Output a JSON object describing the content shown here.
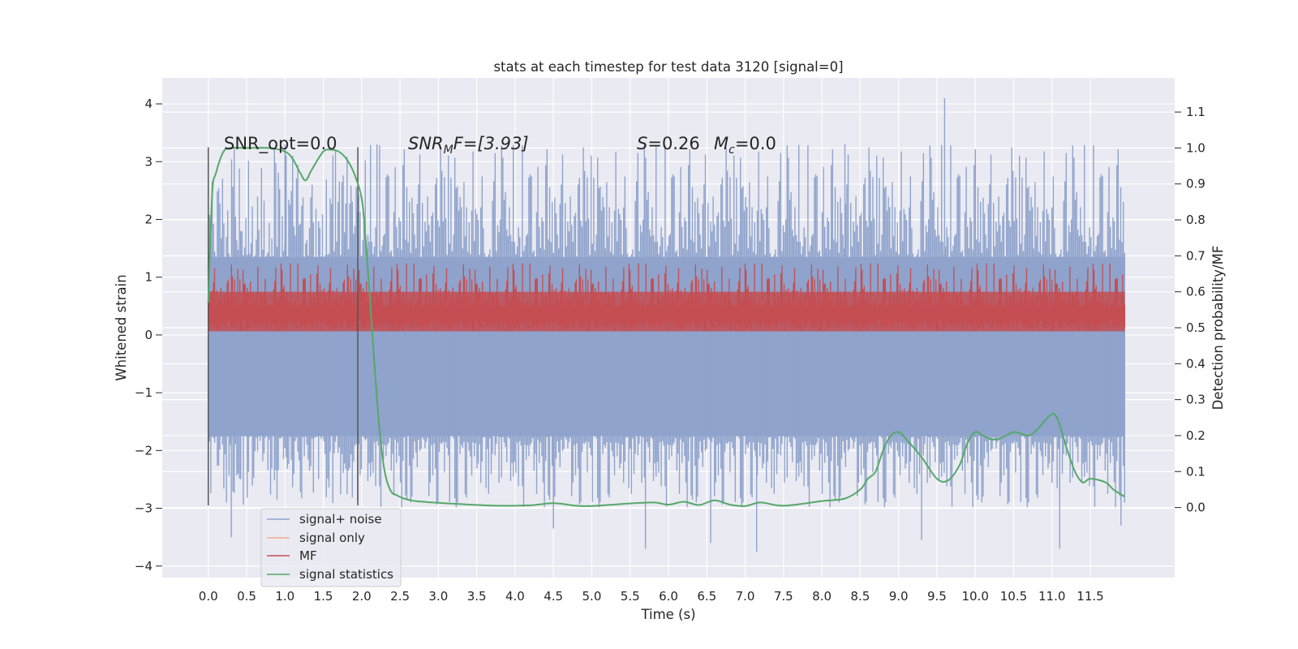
{
  "chart_data": {
    "type": "line",
    "title": "stats at each timestep for test data 3120 [signal=0]",
    "xlabel": "Time (s)",
    "ylabel": "Whitened strain",
    "y2label": "Detection probability/MF",
    "xlim": [
      -0.6,
      12.6
    ],
    "ylim": [
      -4.2,
      4.45
    ],
    "y2lim": [
      -0.195,
      1.195
    ],
    "xticks": [
      "0.0",
      "0.5",
      "1.0",
      "1.5",
      "2.0",
      "2.5",
      "3.0",
      "3.5",
      "4.0",
      "4.5",
      "5.0",
      "5.5",
      "6.0",
      "6.5",
      "7.0",
      "7.5",
      "8.0",
      "8.5",
      "9.0",
      "9.5",
      "10.0",
      "10.5",
      "11.0",
      "11.5"
    ],
    "yticks": [
      "4",
      "3",
      "2",
      "1",
      "0",
      "−1",
      "−2",
      "−3",
      "−4"
    ],
    "y2ticks": [
      "1.1",
      "1.0",
      "0.9",
      "0.8",
      "0.7",
      "0.6",
      "0.5",
      "0.4",
      "0.3",
      "0.2",
      "0.1",
      "0.0"
    ],
    "annotations": {
      "snr_opt": "SNR_opt=0.0",
      "snr_mf_sym": "SNR",
      "snr_mf_sub": "M",
      "snr_mf_rest": "F=[3.93]",
      "s_sym": "S",
      "s_rest": "=0.26",
      "mc_sym": "M",
      "mc_sub": "c",
      "mc_rest": "=0.0"
    },
    "vlines": [
      0.0,
      1.95
    ],
    "vline_range": [
      -2.95,
      3.25
    ],
    "series": [
      {
        "name": "signal+ noise",
        "color": "#8fa3cc",
        "band": [
          -1.75,
          1.35
        ],
        "spike_range": [
          -3.8,
          4.1
        ],
        "t_end": 11.95
      },
      {
        "name": "signal only",
        "color": "#f2a98a",
        "values": []
      },
      {
        "name": "MF",
        "color": "#c44e52",
        "axis": "y2",
        "band": [
          0.49,
          0.6
        ],
        "spike_range": [
          0.49,
          0.68
        ],
        "t_end": 11.95
      },
      {
        "name": "signal statistics",
        "color": "#55a868",
        "axis": "y2",
        "x": [
          0.0,
          0.05,
          0.1,
          0.2,
          0.3,
          0.5,
          0.8,
          1.0,
          1.1,
          1.2,
          1.27,
          1.35,
          1.5,
          1.6,
          1.7,
          1.8,
          1.9,
          2.0,
          2.05,
          2.1,
          2.15,
          2.2,
          2.25,
          2.3,
          2.35,
          2.4,
          2.45,
          2.55,
          2.7,
          3.0,
          3.4,
          3.8,
          4.2,
          4.5,
          4.8,
          5.0,
          5.4,
          5.8,
          6.0,
          6.2,
          6.4,
          6.6,
          6.8,
          7.0,
          7.2,
          7.5,
          8.0,
          8.3,
          8.5,
          8.6,
          8.7,
          8.8,
          8.9,
          9.0,
          9.1,
          9.3,
          9.5,
          9.65,
          9.8,
          9.9,
          10.0,
          10.1,
          10.2,
          10.3,
          10.4,
          10.5,
          10.6,
          10.7,
          10.8,
          10.9,
          11.0,
          11.05,
          11.1,
          11.2,
          11.3,
          11.4,
          11.5,
          11.7,
          11.8,
          11.95
        ],
        "values": [
          0.57,
          0.87,
          0.93,
          0.99,
          1.0,
          1.0,
          1.0,
          0.99,
          0.97,
          0.93,
          0.91,
          0.94,
          0.99,
          0.995,
          0.99,
          0.97,
          0.93,
          0.86,
          0.75,
          0.6,
          0.45,
          0.3,
          0.18,
          0.1,
          0.06,
          0.04,
          0.035,
          0.025,
          0.018,
          0.013,
          0.008,
          0.005,
          0.006,
          0.012,
          0.005,
          0.004,
          0.01,
          0.014,
          0.008,
          0.016,
          0.007,
          0.02,
          0.008,
          0.004,
          0.014,
          0.005,
          0.018,
          0.025,
          0.05,
          0.08,
          0.1,
          0.16,
          0.2,
          0.21,
          0.19,
          0.14,
          0.08,
          0.076,
          0.12,
          0.18,
          0.21,
          0.2,
          0.19,
          0.19,
          0.2,
          0.21,
          0.205,
          0.2,
          0.215,
          0.24,
          0.26,
          0.255,
          0.23,
          0.16,
          0.1,
          0.07,
          0.08,
          0.07,
          0.05,
          0.03
        ]
      }
    ],
    "legend": "lower-left"
  }
}
